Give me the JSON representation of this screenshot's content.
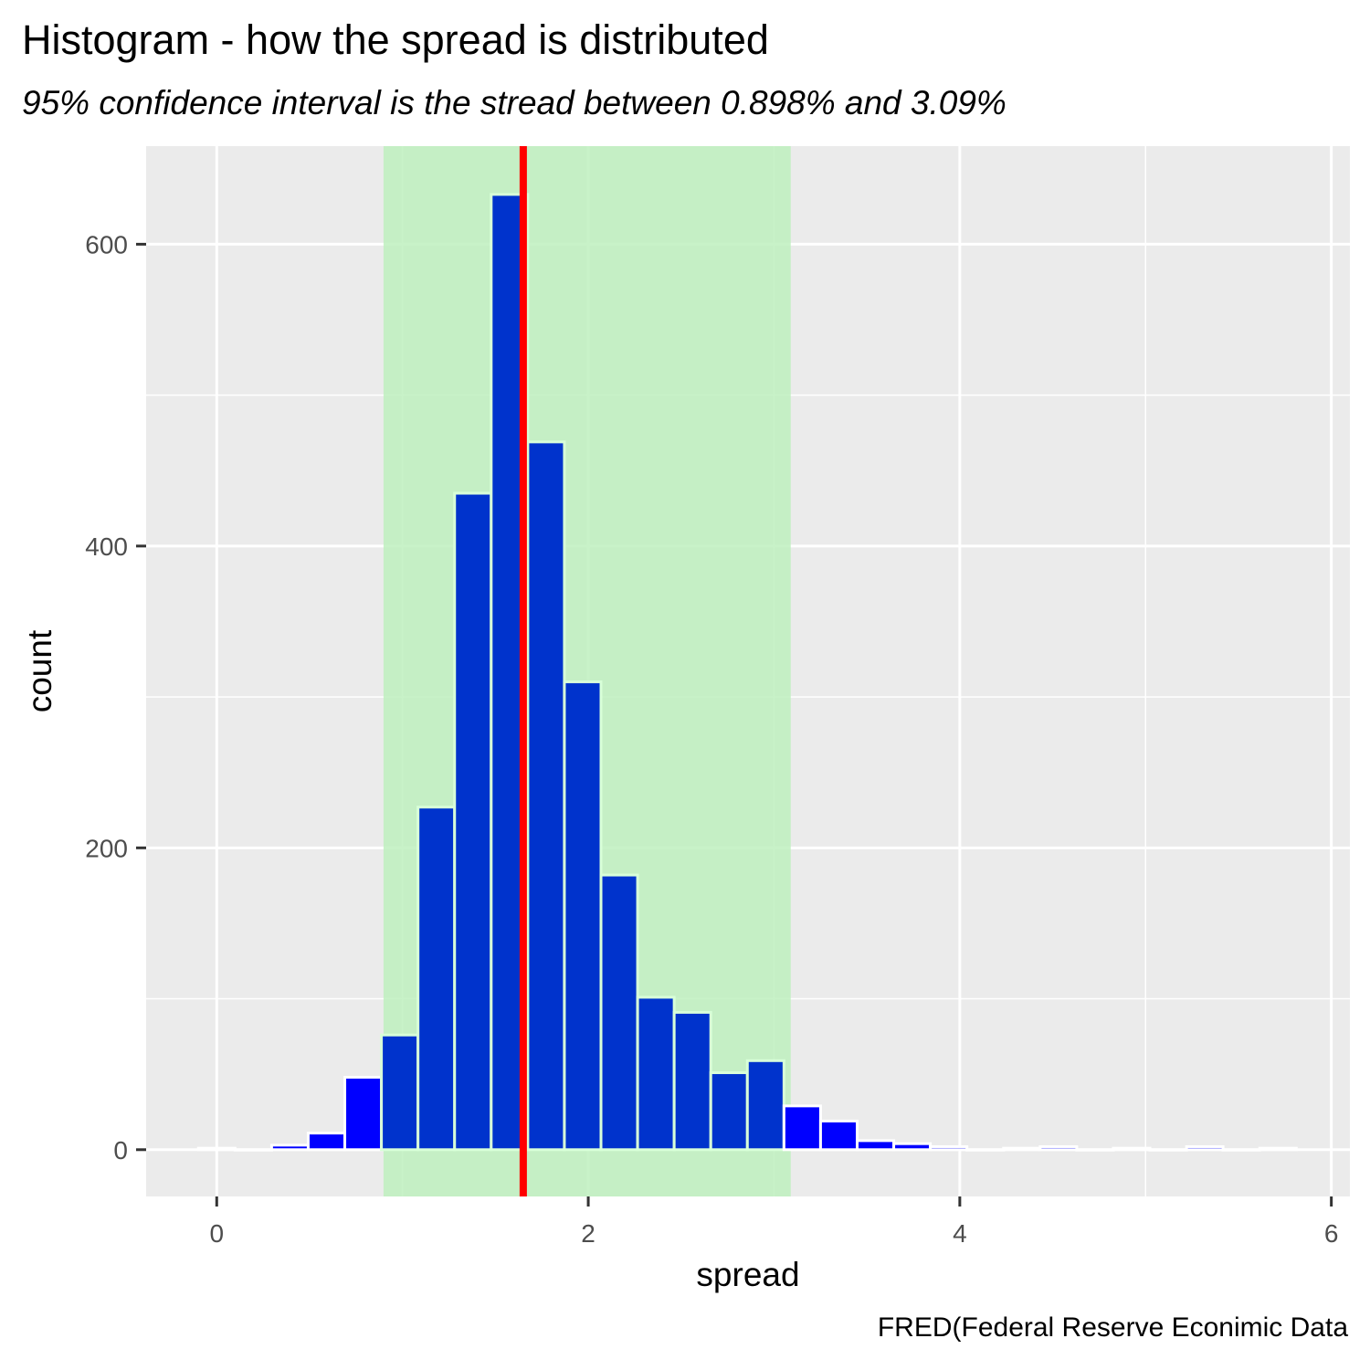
{
  "chart_data": {
    "type": "bar",
    "title": "Histogram - how the spread is distributed",
    "subtitle": "95% confidence interval is the stread between 0.898% and 3.09%",
    "caption": "FRED(Federal Reserve Econimic Data",
    "xlabel": "spread",
    "ylabel": "count",
    "xlim": [
      -0.38,
      6.1
    ],
    "ylim": [
      -31,
      665
    ],
    "x_ticks": [
      0,
      2,
      4,
      6
    ],
    "y_ticks": [
      0,
      200,
      400,
      600
    ],
    "bin_width": 0.197,
    "bins": [
      {
        "x": 0.0,
        "count": 1
      },
      {
        "x": 0.197,
        "count": 0
      },
      {
        "x": 0.394,
        "count": 3
      },
      {
        "x": 0.591,
        "count": 11
      },
      {
        "x": 0.788,
        "count": 48
      },
      {
        "x": 0.985,
        "count": 76
      },
      {
        "x": 1.182,
        "count": 227
      },
      {
        "x": 1.379,
        "count": 435
      },
      {
        "x": 1.576,
        "count": 633
      },
      {
        "x": 1.773,
        "count": 469
      },
      {
        "x": 1.97,
        "count": 310
      },
      {
        "x": 2.167,
        "count": 182
      },
      {
        "x": 2.364,
        "count": 101
      },
      {
        "x": 2.561,
        "count": 91
      },
      {
        "x": 2.758,
        "count": 51
      },
      {
        "x": 2.955,
        "count": 59
      },
      {
        "x": 3.152,
        "count": 29
      },
      {
        "x": 3.349,
        "count": 19
      },
      {
        "x": 3.546,
        "count": 6
      },
      {
        "x": 3.743,
        "count": 4
      },
      {
        "x": 3.94,
        "count": 2
      },
      {
        "x": 4.137,
        "count": 0
      },
      {
        "x": 4.334,
        "count": 1
      },
      {
        "x": 4.531,
        "count": 2
      },
      {
        "x": 4.728,
        "count": 0
      },
      {
        "x": 4.925,
        "count": 1
      },
      {
        "x": 5.122,
        "count": 0
      },
      {
        "x": 5.319,
        "count": 2
      },
      {
        "x": 5.516,
        "count": 0
      },
      {
        "x": 5.713,
        "count": 1
      }
    ],
    "confidence_interval": [
      0.898,
      3.09
    ],
    "mean_line": 1.65,
    "colors": {
      "panel": "#ebebeb",
      "grid": "#ffffff",
      "interval_band": "#bef0be",
      "bar_outside": "#0000ff",
      "bar_inside": "#0033cc",
      "mean_line": "#ff0000"
    },
    "grid": true
  }
}
